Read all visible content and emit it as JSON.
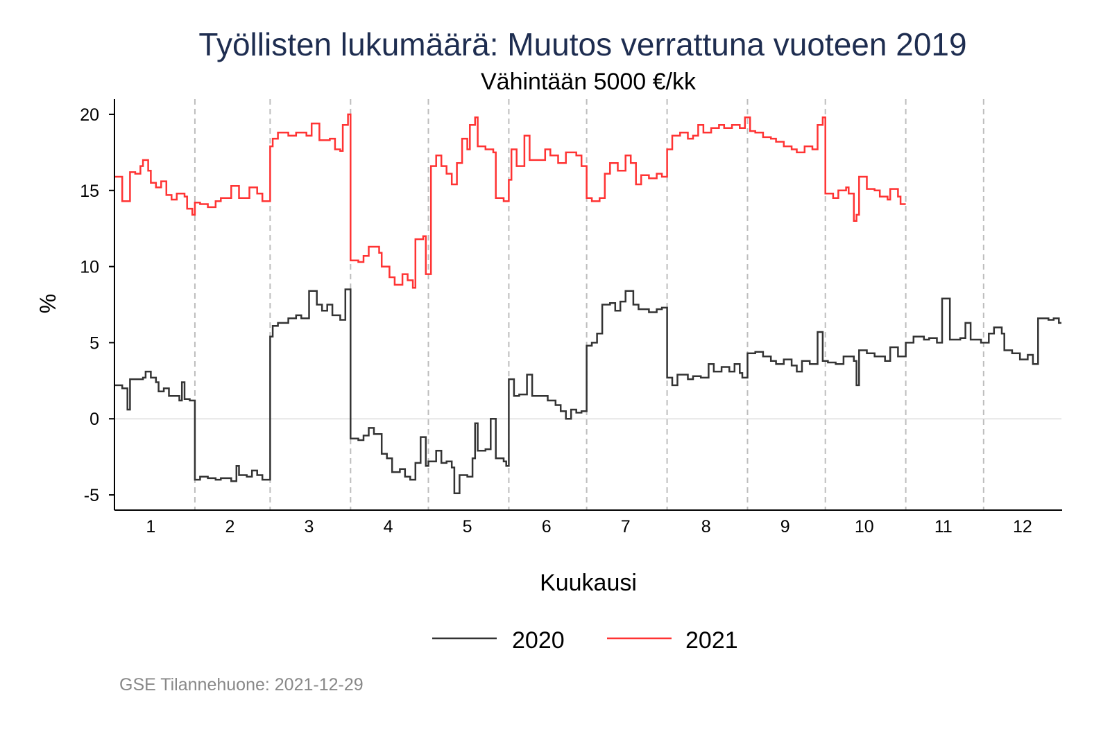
{
  "chart_data": {
    "type": "line",
    "title": "Työllisten lukumäärä: Muutos verrattuna vuoteen 2019",
    "subtitle": "Vähintään 5000 €/kk",
    "xlabel": "Kuukausi",
    "ylabel": "%",
    "xlim": [
      1,
      366
    ],
    "ylim": [
      -6,
      21
    ],
    "yticks": [
      -5,
      0,
      5,
      10,
      15,
      20
    ],
    "ytick_labels": [
      "-5",
      "0",
      "5",
      "10",
      "15",
      "20"
    ],
    "xticks_day": [
      15,
      45.5,
      76,
      106.5,
      137,
      167.5,
      198,
      229,
      259.5,
      290,
      320.5,
      351
    ],
    "xtick_labels": [
      "1",
      "2",
      "3",
      "4",
      "5",
      "6",
      "7",
      "8",
      "9",
      "10",
      "11",
      "12"
    ],
    "month_boundaries_day": [
      32,
      61,
      92,
      122,
      153,
      183,
      214,
      245,
      275,
      306,
      336
    ],
    "reference_line": 0,
    "step": true,
    "legend_position": "bottom",
    "series": [
      {
        "name": "2020",
        "color": "#333333",
        "end_day": 366,
        "points": [
          [
            1,
            2.2
          ],
          [
            4,
            2.0
          ],
          [
            6,
            0.6
          ],
          [
            7,
            2.6
          ],
          [
            10,
            2.6
          ],
          [
            12,
            2.7
          ],
          [
            13,
            3.1
          ],
          [
            15,
            2.7
          ],
          [
            17,
            2.4
          ],
          [
            18,
            1.8
          ],
          [
            20,
            2.0
          ],
          [
            22,
            1.5
          ],
          [
            24,
            1.5
          ],
          [
            26,
            1.2
          ],
          [
            27,
            2.4
          ],
          [
            28,
            1.3
          ],
          [
            30,
            1.2
          ],
          [
            32,
            -4.0
          ],
          [
            34,
            -3.8
          ],
          [
            37,
            -3.9
          ],
          [
            40,
            -4.0
          ],
          [
            42,
            -3.9
          ],
          [
            46,
            -4.1
          ],
          [
            48,
            -3.1
          ],
          [
            49,
            -3.7
          ],
          [
            52,
            -3.8
          ],
          [
            54,
            -3.4
          ],
          [
            56,
            -3.7
          ],
          [
            58,
            -4.0
          ],
          [
            61,
            5.4
          ],
          [
            62,
            6.1
          ],
          [
            64,
            6.3
          ],
          [
            68,
            6.6
          ],
          [
            71,
            6.8
          ],
          [
            73,
            6.6
          ],
          [
            76,
            8.4
          ],
          [
            79,
            7.5
          ],
          [
            81,
            7.1
          ],
          [
            83,
            7.5
          ],
          [
            85,
            6.8
          ],
          [
            88,
            6.5
          ],
          [
            90,
            8.5
          ],
          [
            92,
            -1.3
          ],
          [
            95,
            -1.4
          ],
          [
            97,
            -1.1
          ],
          [
            99,
            -0.6
          ],
          [
            101,
            -1.0
          ],
          [
            104,
            -2.3
          ],
          [
            106,
            -2.6
          ],
          [
            108,
            -3.5
          ],
          [
            111,
            -3.3
          ],
          [
            113,
            -3.8
          ],
          [
            115,
            -4.0
          ],
          [
            117,
            -2.9
          ],
          [
            119,
            -1.2
          ],
          [
            121,
            -3.1
          ],
          [
            122,
            -2.8
          ],
          [
            125,
            -2.1
          ],
          [
            127,
            -2.9
          ],
          [
            129,
            -2.8
          ],
          [
            131,
            -3.2
          ],
          [
            132,
            -4.9
          ],
          [
            134,
            -3.7
          ],
          [
            137,
            -3.8
          ],
          [
            139,
            -2.6
          ],
          [
            140,
            -0.3
          ],
          [
            141,
            -2.1
          ],
          [
            144,
            -2.0
          ],
          [
            146,
            0.0
          ],
          [
            148,
            -2.6
          ],
          [
            151,
            -2.8
          ],
          [
            152,
            -3.1
          ],
          [
            153,
            2.6
          ],
          [
            155,
            1.5
          ],
          [
            157,
            1.6
          ],
          [
            160,
            2.9
          ],
          [
            162,
            1.5
          ],
          [
            165,
            1.5
          ],
          [
            168,
            1.2
          ],
          [
            171,
            0.9
          ],
          [
            173,
            0.5
          ],
          [
            175,
            0.0
          ],
          [
            177,
            0.6
          ],
          [
            179,
            0.4
          ],
          [
            181,
            0.5
          ],
          [
            183,
            4.8
          ],
          [
            185,
            5.0
          ],
          [
            187,
            5.6
          ],
          [
            189,
            7.5
          ],
          [
            192,
            7.6
          ],
          [
            194,
            7.1
          ],
          [
            196,
            7.7
          ],
          [
            198,
            8.4
          ],
          [
            201,
            7.5
          ],
          [
            203,
            7.2
          ],
          [
            207,
            7.0
          ],
          [
            210,
            7.2
          ],
          [
            212,
            7.3
          ],
          [
            214,
            2.7
          ],
          [
            216,
            2.2
          ],
          [
            218,
            2.9
          ],
          [
            222,
            2.6
          ],
          [
            224,
            2.8
          ],
          [
            227,
            2.7
          ],
          [
            230,
            3.6
          ],
          [
            232,
            3.1
          ],
          [
            235,
            3.4
          ],
          [
            238,
            3.1
          ],
          [
            240,
            3.6
          ],
          [
            242,
            3.0
          ],
          [
            243,
            2.7
          ],
          [
            245,
            4.3
          ],
          [
            248,
            4.4
          ],
          [
            251,
            4.1
          ],
          [
            254,
            3.8
          ],
          [
            256,
            3.6
          ],
          [
            259,
            3.9
          ],
          [
            262,
            3.5
          ],
          [
            264,
            3.1
          ],
          [
            266,
            3.8
          ],
          [
            269,
            3.6
          ],
          [
            272,
            5.7
          ],
          [
            274,
            3.8
          ],
          [
            276,
            3.7
          ],
          [
            279,
            3.6
          ],
          [
            282,
            4.1
          ],
          [
            286,
            3.8
          ],
          [
            287,
            2.2
          ],
          [
            288,
            4.5
          ],
          [
            291,
            4.3
          ],
          [
            294,
            4.1
          ],
          [
            298,
            3.8
          ],
          [
            300,
            4.7
          ],
          [
            303,
            4.1
          ],
          [
            306,
            5.0
          ],
          [
            309,
            5.4
          ],
          [
            313,
            5.2
          ],
          [
            315,
            5.3
          ],
          [
            318,
            5.0
          ],
          [
            320,
            7.9
          ],
          [
            323,
            5.2
          ],
          [
            327,
            5.3
          ],
          [
            329,
            6.3
          ],
          [
            331,
            5.2
          ],
          [
            335,
            5.0
          ],
          [
            338,
            5.6
          ],
          [
            340,
            6.0
          ],
          [
            343,
            5.6
          ],
          [
            344,
            4.5
          ],
          [
            347,
            4.3
          ],
          [
            350,
            3.9
          ],
          [
            353,
            4.2
          ],
          [
            355,
            3.6
          ],
          [
            357,
            6.6
          ],
          [
            361,
            6.5
          ],
          [
            363,
            6.6
          ],
          [
            365,
            6.3
          ]
        ]
      },
      {
        "name": "2021",
        "color": "#ff3333",
        "end_day": 306,
        "points": [
          [
            1,
            15.9
          ],
          [
            4,
            14.3
          ],
          [
            7,
            16.2
          ],
          [
            9,
            16.1
          ],
          [
            11,
            16.6
          ],
          [
            12,
            17.0
          ],
          [
            14,
            16.3
          ],
          [
            15,
            15.5
          ],
          [
            17,
            15.2
          ],
          [
            19,
            15.6
          ],
          [
            21,
            14.7
          ],
          [
            23,
            14.4
          ],
          [
            25,
            14.8
          ],
          [
            28,
            14.6
          ],
          [
            29,
            13.8
          ],
          [
            31,
            13.4
          ],
          [
            32,
            14.2
          ],
          [
            34,
            14.1
          ],
          [
            37,
            13.9
          ],
          [
            40,
            14.3
          ],
          [
            42,
            14.5
          ],
          [
            46,
            15.3
          ],
          [
            49,
            14.5
          ],
          [
            53,
            15.2
          ],
          [
            56,
            14.8
          ],
          [
            58,
            14.3
          ],
          [
            61,
            17.9
          ],
          [
            62,
            18.4
          ],
          [
            64,
            18.8
          ],
          [
            68,
            18.6
          ],
          [
            71,
            18.8
          ],
          [
            75,
            18.6
          ],
          [
            77,
            19.4
          ],
          [
            80,
            18.3
          ],
          [
            84,
            18.4
          ],
          [
            86,
            17.7
          ],
          [
            88,
            17.6
          ],
          [
            89,
            19.3
          ],
          [
            91,
            20.0
          ],
          [
            92,
            10.4
          ],
          [
            95,
            10.3
          ],
          [
            97,
            10.7
          ],
          [
            99,
            11.3
          ],
          [
            103,
            10.9
          ],
          [
            104,
            10.0
          ],
          [
            107,
            9.3
          ],
          [
            109,
            8.8
          ],
          [
            112,
            9.5
          ],
          [
            114,
            9.1
          ],
          [
            116,
            8.6
          ],
          [
            117,
            11.8
          ],
          [
            120,
            12.0
          ],
          [
            121,
            9.5
          ],
          [
            123,
            16.6
          ],
          [
            125,
            17.3
          ],
          [
            127,
            16.6
          ],
          [
            129,
            16.1
          ],
          [
            131,
            15.4
          ],
          [
            133,
            16.8
          ],
          [
            135,
            18.4
          ],
          [
            137,
            17.7
          ],
          [
            138,
            19.3
          ],
          [
            140,
            19.8
          ],
          [
            141,
            17.9
          ],
          [
            144,
            17.7
          ],
          [
            147,
            17.5
          ],
          [
            148,
            14.5
          ],
          [
            151,
            14.3
          ],
          [
            153,
            15.7
          ],
          [
            154,
            17.7
          ],
          [
            156,
            16.6
          ],
          [
            159,
            18.6
          ],
          [
            161,
            17.0
          ],
          [
            165,
            17.0
          ],
          [
            167,
            17.7
          ],
          [
            169,
            17.3
          ],
          [
            172,
            16.8
          ],
          [
            175,
            17.5
          ],
          [
            179,
            17.3
          ],
          [
            181,
            16.6
          ],
          [
            183,
            14.5
          ],
          [
            185,
            14.3
          ],
          [
            188,
            14.5
          ],
          [
            190,
            16.1
          ],
          [
            192,
            16.8
          ],
          [
            195,
            16.3
          ],
          [
            198,
            17.3
          ],
          [
            200,
            16.8
          ],
          [
            202,
            15.4
          ],
          [
            204,
            16.0
          ],
          [
            207,
            15.8
          ],
          [
            210,
            16.1
          ],
          [
            212,
            15.9
          ],
          [
            214,
            17.7
          ],
          [
            216,
            18.6
          ],
          [
            219,
            18.8
          ],
          [
            222,
            18.4
          ],
          [
            224,
            18.6
          ],
          [
            226,
            19.3
          ],
          [
            228,
            18.8
          ],
          [
            231,
            19.1
          ],
          [
            234,
            19.3
          ],
          [
            236,
            19.1
          ],
          [
            239,
            19.3
          ],
          [
            242,
            19.1
          ],
          [
            244,
            19.8
          ],
          [
            246,
            18.9
          ],
          [
            248,
            18.8
          ],
          [
            251,
            18.5
          ],
          [
            254,
            18.4
          ],
          [
            256,
            18.2
          ],
          [
            259,
            17.9
          ],
          [
            262,
            17.7
          ],
          [
            264,
            17.5
          ],
          [
            267,
            17.9
          ],
          [
            270,
            17.7
          ],
          [
            272,
            19.3
          ],
          [
            274,
            19.8
          ],
          [
            275,
            14.8
          ],
          [
            278,
            14.5
          ],
          [
            280,
            15.0
          ],
          [
            283,
            15.2
          ],
          [
            284,
            14.8
          ],
          [
            286,
            13.0
          ],
          [
            287,
            13.4
          ],
          [
            288,
            15.9
          ],
          [
            291,
            15.1
          ],
          [
            294,
            15.0
          ],
          [
            296,
            14.6
          ],
          [
            299,
            14.4
          ],
          [
            300,
            15.1
          ],
          [
            303,
            14.6
          ],
          [
            304,
            14.1
          ]
        ]
      }
    ],
    "footer": "GSE Tilannehuone: 2021-12-29"
  }
}
